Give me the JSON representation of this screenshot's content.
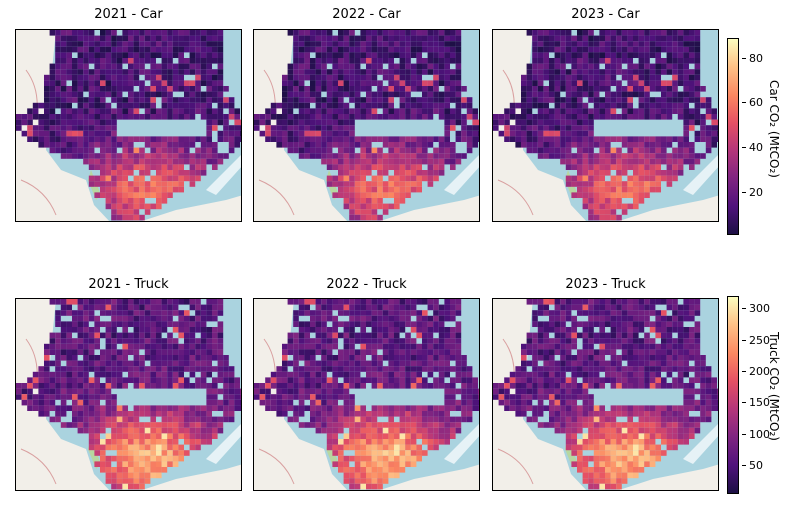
{
  "panels": [
    {
      "title": "2021 - Car",
      "mode": "car",
      "year": 2021
    },
    {
      "title": "2022 - Car",
      "mode": "car",
      "year": 2022
    },
    {
      "title": "2023 - Car",
      "mode": "car",
      "year": 2023
    },
    {
      "title": "2021 - Truck",
      "mode": "truck",
      "year": 2021
    },
    {
      "title": "2022 - Truck",
      "mode": "truck",
      "year": 2022
    },
    {
      "title": "2023 - Truck",
      "mode": "truck",
      "year": 2023
    }
  ],
  "colorbars": {
    "car": {
      "label": "Car CO₂ (MtCO₂)",
      "min": 1,
      "max": 89,
      "ticks": [
        "20",
        "40",
        "60",
        "80"
      ]
    },
    "truck": {
      "label": "Truck CO₂ (MtCO₂)",
      "min": 5,
      "max": 320,
      "ticks": [
        "50",
        "100",
        "150",
        "200",
        "250",
        "300"
      ]
    }
  },
  "colormap": "magma",
  "basemap": {
    "water_color": "#aad3df",
    "land_color": "#f2efe9"
  }
}
